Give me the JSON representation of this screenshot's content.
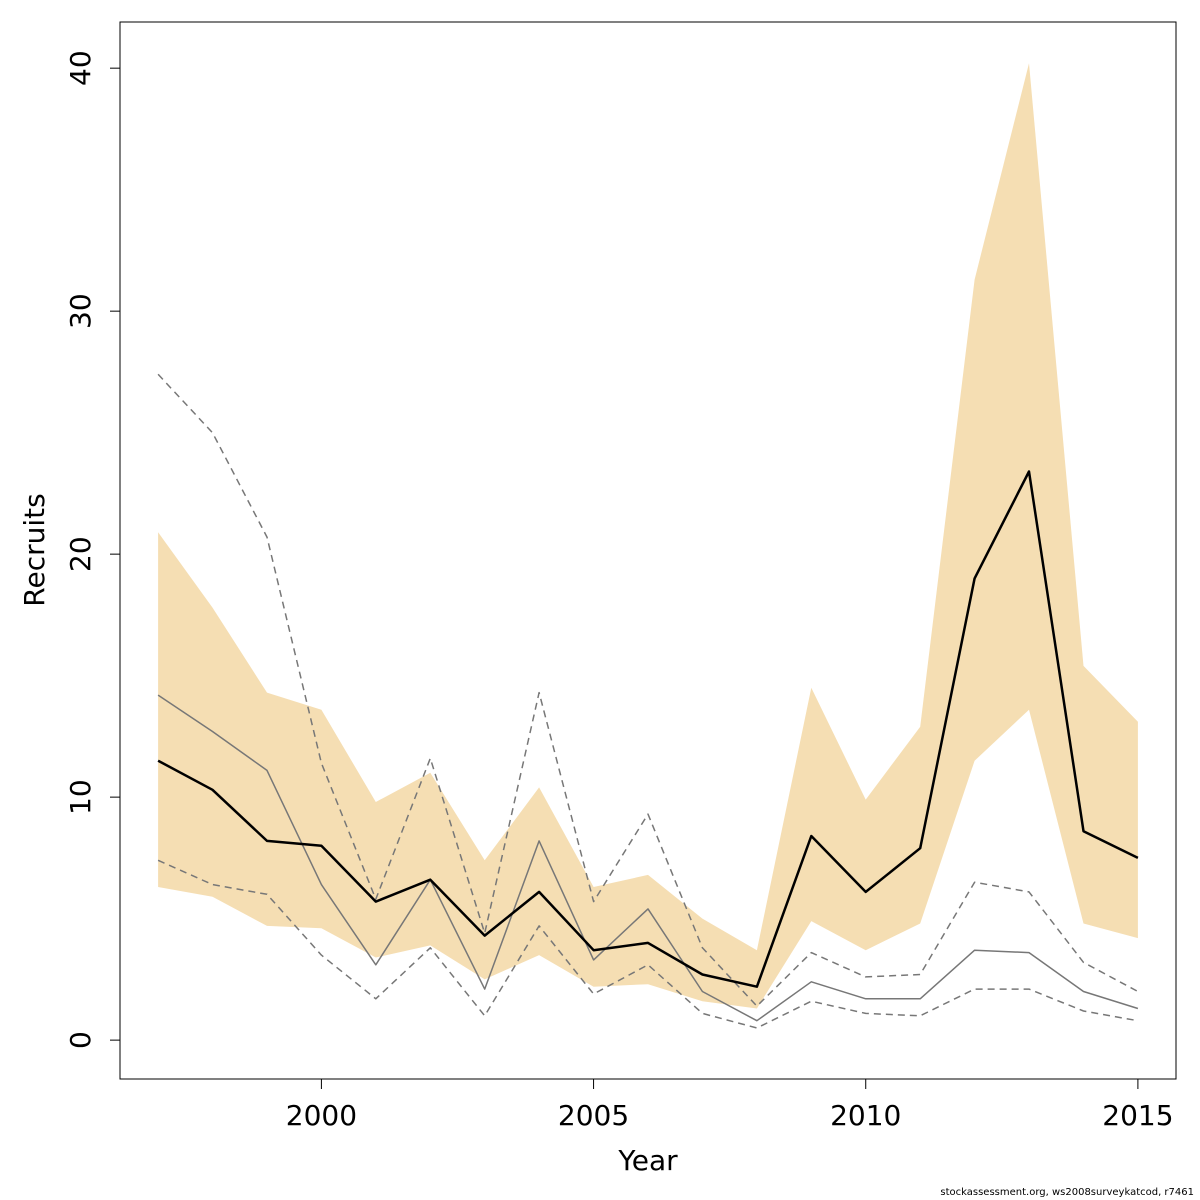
{
  "chart_data": {
    "type": "line",
    "xlabel": "Year",
    "ylabel": "Recruits",
    "xlim": [
      1996.3,
      2015.7
    ],
    "ylim": [
      -1.6,
      41.9
    ],
    "x_ticks": [
      2000,
      2005,
      2010,
      2015
    ],
    "y_ticks": [
      0,
      10,
      20,
      30,
      40
    ],
    "grid": false,
    "legend": "none",
    "x": [
      1997,
      1998,
      1999,
      2000,
      2001,
      2002,
      2003,
      2004,
      2005,
      2006,
      2007,
      2008,
      2009,
      2010,
      2011,
      2012,
      2013,
      2014,
      2015
    ],
    "band": {
      "color": "#f5deb3",
      "upper": [
        20.9,
        17.8,
        14.3,
        13.6,
        9.8,
        11.0,
        7.4,
        10.4,
        6.3,
        6.8,
        5.0,
        3.7,
        14.5,
        9.9,
        12.9,
        31.3,
        40.2,
        15.4,
        13.1
      ],
      "lower": [
        6.3,
        5.9,
        4.7,
        4.6,
        3.4,
        3.9,
        2.5,
        3.5,
        2.2,
        2.3,
        1.6,
        1.3,
        4.9,
        3.7,
        4.8,
        11.5,
        13.6,
        4.8,
        4.2
      ]
    },
    "series": [
      {
        "values": [
          14.2,
          12.7,
          11.1,
          6.4,
          3.1,
          6.6,
          2.1,
          8.2,
          3.3,
          5.4,
          2.0,
          0.8,
          2.4,
          1.7,
          1.7,
          3.7,
          3.6,
          2.0,
          1.3
        ],
        "color": "#777777",
        "width": 1.5,
        "dash": ""
      },
      {
        "values": [
          27.4,
          25.0,
          20.7,
          11.4,
          5.8,
          11.6,
          4.4,
          14.3,
          5.7,
          9.3,
          3.8,
          1.4,
          3.6,
          2.6,
          2.7,
          6.5,
          6.1,
          3.2,
          2.0
        ],
        "color": "#777777",
        "width": 1.5,
        "dash": "7,5"
      },
      {
        "values": [
          7.4,
          6.4,
          6.0,
          3.5,
          1.7,
          3.8,
          1.0,
          4.7,
          1.9,
          3.1,
          1.1,
          0.5,
          1.6,
          1.1,
          1.0,
          2.1,
          2.1,
          1.2,
          0.8
        ],
        "color": "#777777",
        "width": 1.5,
        "dash": "7,5"
      },
      {
        "values": [
          11.5,
          10.3,
          8.2,
          8.0,
          5.7,
          6.6,
          4.3,
          6.1,
          3.7,
          4.0,
          2.7,
          2.2,
          8.4,
          6.1,
          7.9,
          19.0,
          23.4,
          8.6,
          7.5
        ],
        "color": "#000000",
        "width": 2.5,
        "dash": ""
      }
    ]
  },
  "footer": "stockassessment.org, ws2008surveykatcod, r7461"
}
